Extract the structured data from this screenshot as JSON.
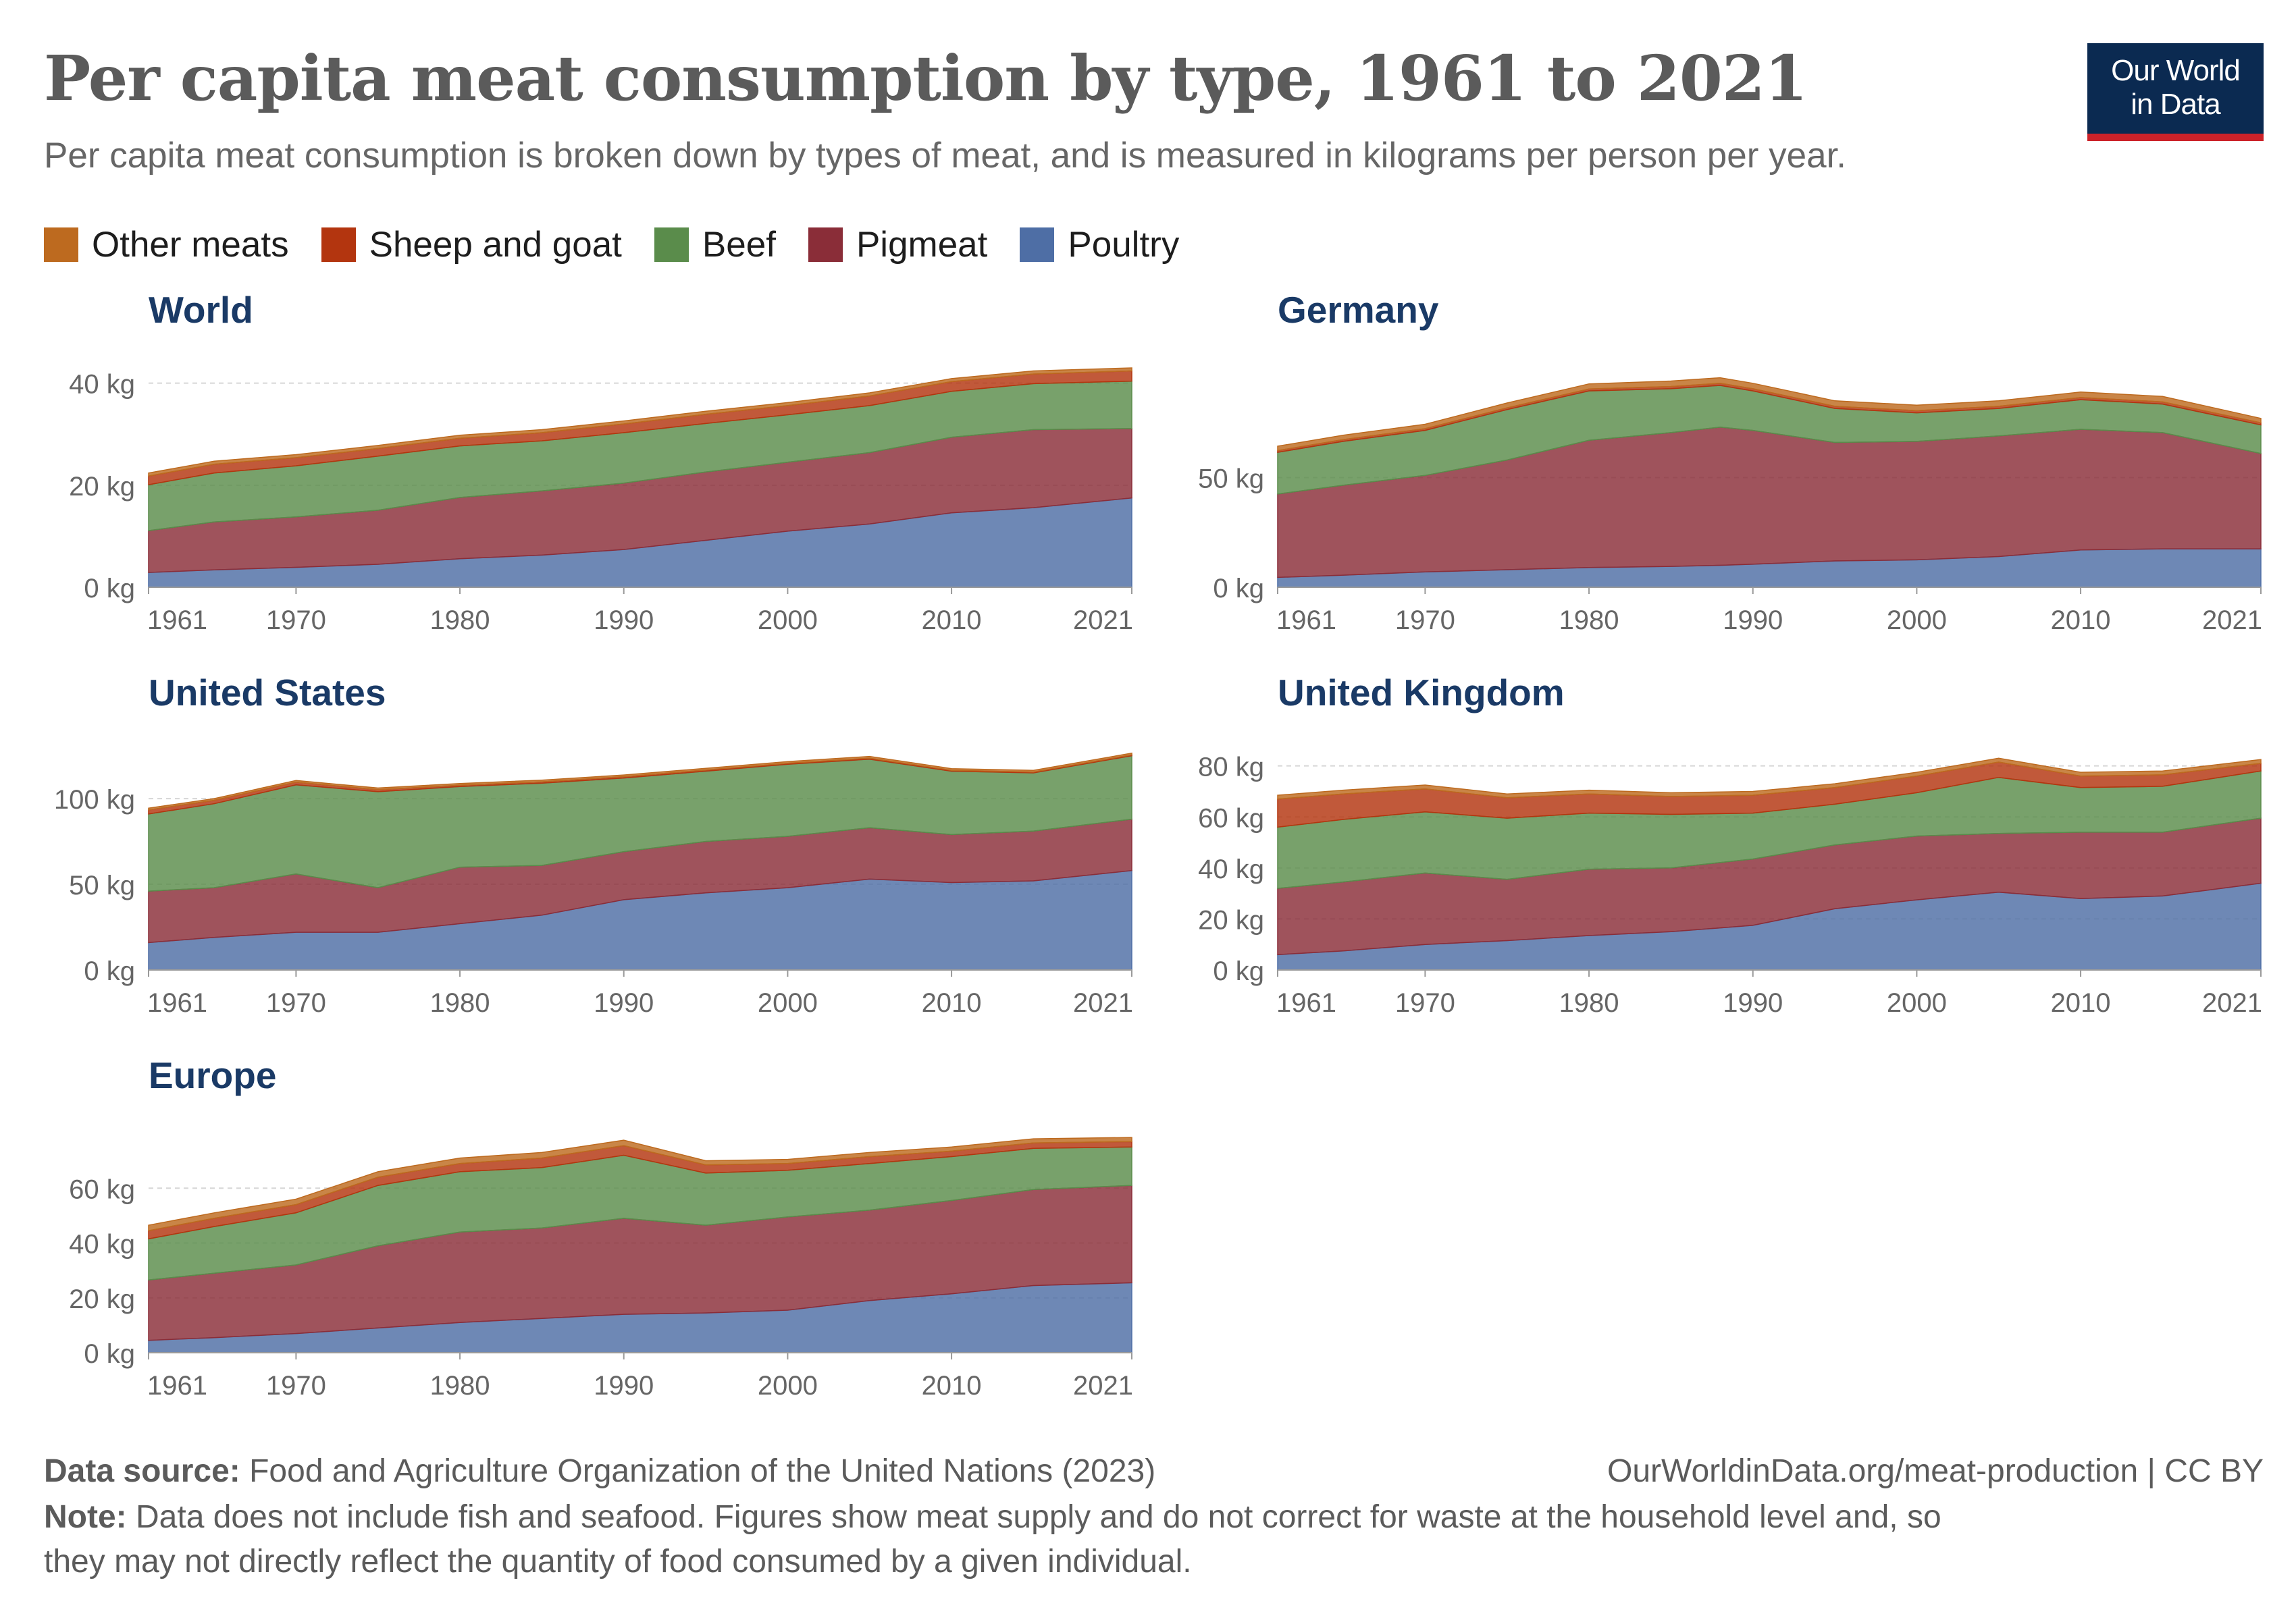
{
  "title": "Per capita meat consumption by type, 1961 to 2021",
  "subtitle": "Per capita meat consumption is broken down by types of meat, and is measured in kilograms per person per year.",
  "logo": {
    "line1": "Our World",
    "line2": "in Data"
  },
  "legend": [
    {
      "label": "Other meats",
      "color": "#bd6a1f"
    },
    {
      "label": "Sheep and goat",
      "color": "#b3350f"
    },
    {
      "label": "Beef",
      "color": "#5a8c4b"
    },
    {
      "label": "Pigmeat",
      "color": "#8a2d38"
    },
    {
      "label": "Poultry",
      "color": "#4e6ea5"
    }
  ],
  "footer": {
    "source_label": "Data source:",
    "source_text": "Food and Agriculture Organization of the United Nations (2023)",
    "url_text": "OurWorldinData.org/meat-production | CC BY",
    "note_label": "Note:",
    "note_line1": "Data does not include fish and seafood. Figures show meat supply and do not correct for waste at the household level and, so",
    "note_line2": "they may not directly reflect the quantity of food consumed by a given individual."
  },
  "chart_data": [
    {
      "type": "area",
      "stacked": true,
      "title": "World",
      "x": [
        1961,
        1965,
        1970,
        1975,
        1980,
        1985,
        1990,
        1995,
        2000,
        2005,
        2010,
        2015,
        2021
      ],
      "x_ticks": [
        "1961",
        "1970",
        "1980",
        "1990",
        "2000",
        "2010",
        "2021"
      ],
      "y_ticks": [
        "0 kg",
        "20 kg",
        "40 kg"
      ],
      "y_tick_values": [
        0,
        20,
        40
      ],
      "ylim": [
        0,
        43
      ],
      "series": [
        {
          "name": "Poultry",
          "values": [
            2.9,
            3.4,
            3.9,
            4.5,
            5.6,
            6.3,
            7.4,
            9.2,
            11.0,
            12.4,
            14.6,
            15.6,
            17.5
          ]
        },
        {
          "name": "Pigmeat",
          "values": [
            8.2,
            9.4,
            9.9,
            10.6,
            12.0,
            12.6,
            13.0,
            13.4,
            13.5,
            14.0,
            14.8,
            15.3,
            13.6
          ]
        },
        {
          "name": "Beef",
          "values": [
            9.0,
            9.6,
            10.0,
            10.6,
            10.1,
            9.8,
            9.9,
            9.5,
            9.3,
            9.2,
            9.0,
            9.0,
            9.3
          ]
        },
        {
          "name": "Sheep and goat",
          "values": [
            1.7,
            1.7,
            1.6,
            1.5,
            1.5,
            1.6,
            1.7,
            1.8,
            1.8,
            1.9,
            1.9,
            1.9,
            2.0
          ]
        },
        {
          "name": "Other meats",
          "values": [
            0.6,
            0.6,
            0.6,
            0.6,
            0.6,
            0.6,
            0.6,
            0.6,
            0.6,
            0.6,
            0.6,
            0.6,
            0.6
          ]
        }
      ]
    },
    {
      "type": "area",
      "stacked": true,
      "title": "Germany",
      "x": [
        1961,
        1965,
        1970,
        1975,
        1980,
        1985,
        1988,
        1990,
        1995,
        2000,
        2005,
        2010,
        2015,
        2021
      ],
      "x_ticks": [
        "1961",
        "1970",
        "1980",
        "1990",
        "2000",
        "2010",
        "2021"
      ],
      "y_ticks": [
        "0 kg",
        "50 kg"
      ],
      "y_tick_values": [
        0,
        50
      ],
      "ylim": [
        0,
        100
      ],
      "series": [
        {
          "name": "Poultry",
          "values": [
            4.5,
            5.5,
            7.0,
            8.0,
            9.0,
            9.5,
            10.0,
            10.5,
            12.0,
            12.5,
            14.0,
            17.0,
            17.5,
            17.5
          ]
        },
        {
          "name": "Pigmeat",
          "values": [
            38.0,
            41.0,
            44.0,
            50.0,
            58.0,
            61.0,
            63.0,
            61.0,
            54.0,
            54.0,
            55.0,
            55.0,
            53.0,
            43.5
          ]
        },
        {
          "name": "Beef",
          "values": [
            19.0,
            20.0,
            20.5,
            23.0,
            22.5,
            20.0,
            19.0,
            18.0,
            15.5,
            13.0,
            12.5,
            13.5,
            13.0,
            13.0
          ]
        },
        {
          "name": "Sheep and goat",
          "values": [
            0.8,
            0.8,
            0.8,
            0.8,
            0.9,
            1.0,
            1.0,
            1.0,
            1.0,
            1.0,
            1.0,
            1.0,
            1.0,
            1.0
          ]
        },
        {
          "name": "Other meats",
          "values": [
            2.0,
            2.0,
            2.0,
            2.2,
            2.3,
            2.5,
            2.5,
            2.5,
            2.5,
            2.5,
            2.5,
            2.5,
            2.5,
            2.0
          ]
        }
      ]
    },
    {
      "type": "area",
      "stacked": true,
      "title": "United States",
      "x": [
        1961,
        1965,
        1970,
        1975,
        1980,
        1985,
        1990,
        1995,
        2000,
        2005,
        2010,
        2015,
        2021
      ],
      "x_ticks": [
        "1961",
        "1970",
        "1980",
        "1990",
        "2000",
        "2010",
        "2021"
      ],
      "y_ticks": [
        "0 kg",
        "50 kg",
        "100 kg"
      ],
      "y_tick_values": [
        0,
        50,
        100
      ],
      "ylim": [
        0,
        128
      ],
      "series": [
        {
          "name": "Poultry",
          "values": [
            16.0,
            19.0,
            22.0,
            22.0,
            27.0,
            32.0,
            41.0,
            45.0,
            48.0,
            53.0,
            51.0,
            52.0,
            58.0
          ]
        },
        {
          "name": "Pigmeat",
          "values": [
            30.0,
            29.0,
            34.0,
            26.0,
            33.0,
            29.0,
            28.0,
            30.0,
            30.0,
            30.0,
            28.0,
            29.0,
            30.0
          ]
        },
        {
          "name": "Beef",
          "values": [
            45.0,
            49.0,
            52.0,
            56.0,
            47.0,
            48.0,
            43.0,
            41.0,
            42.0,
            40.0,
            37.0,
            34.0,
            37.0
          ]
        },
        {
          "name": "Sheep and goat",
          "values": [
            2.4,
            2.0,
            1.6,
            1.2,
            0.8,
            0.8,
            0.8,
            0.7,
            0.6,
            0.6,
            0.5,
            0.5,
            0.5
          ]
        },
        {
          "name": "Other meats",
          "values": [
            1.0,
            1.0,
            1.0,
            1.0,
            1.0,
            1.0,
            1.0,
            1.0,
            1.0,
            1.0,
            1.0,
            1.0,
            1.0
          ]
        }
      ]
    },
    {
      "type": "area",
      "stacked": true,
      "title": "United Kingdom",
      "x": [
        1961,
        1965,
        1970,
        1975,
        1980,
        1985,
        1990,
        1995,
        2000,
        2005,
        2010,
        2015,
        2021
      ],
      "x_ticks": [
        "1961",
        "1970",
        "1980",
        "1990",
        "2000",
        "2010",
        "2021"
      ],
      "y_ticks": [
        "0 kg",
        "20 kg",
        "40 kg",
        "60 kg",
        "80 kg"
      ],
      "y_tick_values": [
        0,
        20,
        40,
        60,
        80
      ],
      "ylim": [
        0,
        86
      ],
      "series": [
        {
          "name": "Poultry",
          "values": [
            6.0,
            7.5,
            10.0,
            11.5,
            13.5,
            15.0,
            17.5,
            24.0,
            27.5,
            30.5,
            28.0,
            29.0,
            34.0
          ]
        },
        {
          "name": "Pigmeat",
          "values": [
            26.0,
            27.0,
            28.0,
            24.0,
            26.0,
            25.0,
            26.0,
            25.0,
            25.0,
            23.0,
            26.0,
            25.0,
            25.5
          ]
        },
        {
          "name": "Beef",
          "values": [
            24.0,
            24.5,
            24.0,
            24.0,
            22.0,
            21.0,
            18.0,
            16.0,
            17.0,
            22.0,
            17.5,
            18.0,
            18.5
          ]
        },
        {
          "name": "Sheep and goat",
          "values": [
            11.0,
            10.0,
            9.0,
            8.0,
            7.5,
            7.0,
            7.0,
            6.5,
            6.5,
            6.0,
            4.5,
            4.5,
            3.0
          ]
        },
        {
          "name": "Other meats",
          "values": [
            1.5,
            1.5,
            1.5,
            1.5,
            1.5,
            1.5,
            1.5,
            1.5,
            1.5,
            1.5,
            1.5,
            1.5,
            1.5
          ]
        }
      ]
    },
    {
      "type": "area",
      "stacked": true,
      "title": "Europe",
      "x": [
        1961,
        1965,
        1970,
        1975,
        1980,
        1985,
        1990,
        1995,
        2000,
        2005,
        2010,
        2015,
        2021
      ],
      "x_ticks": [
        "1961",
        "1970",
        "1980",
        "1990",
        "2000",
        "2010",
        "2021"
      ],
      "y_ticks": [
        "0 kg",
        "20 kg",
        "40 kg",
        "60 kg"
      ],
      "y_tick_values": [
        0,
        20,
        40,
        60
      ],
      "ylim": [
        0,
        80
      ],
      "series": [
        {
          "name": "Poultry",
          "values": [
            4.5,
            5.5,
            7.0,
            9.0,
            11.0,
            12.5,
            14.0,
            14.5,
            15.5,
            19.0,
            21.5,
            24.5,
            25.5
          ]
        },
        {
          "name": "Pigmeat",
          "values": [
            22.0,
            23.5,
            25.0,
            30.0,
            33.0,
            33.0,
            35.0,
            32.0,
            34.0,
            33.0,
            34.0,
            35.0,
            35.5
          ]
        },
        {
          "name": "Beef",
          "values": [
            15.0,
            17.0,
            19.0,
            22.0,
            22.0,
            22.0,
            23.0,
            19.0,
            17.0,
            17.0,
            16.0,
            15.0,
            14.0
          ]
        },
        {
          "name": "Sheep and goat",
          "values": [
            3.0,
            3.0,
            3.0,
            3.0,
            3.0,
            3.5,
            3.5,
            3.0,
            2.5,
            2.5,
            2.0,
            2.0,
            2.0
          ]
        },
        {
          "name": "Other meats",
          "values": [
            2.0,
            2.0,
            2.0,
            2.0,
            2.0,
            2.0,
            2.0,
            1.5,
            1.5,
            1.5,
            1.5,
            1.5,
            1.5
          ]
        }
      ]
    }
  ]
}
